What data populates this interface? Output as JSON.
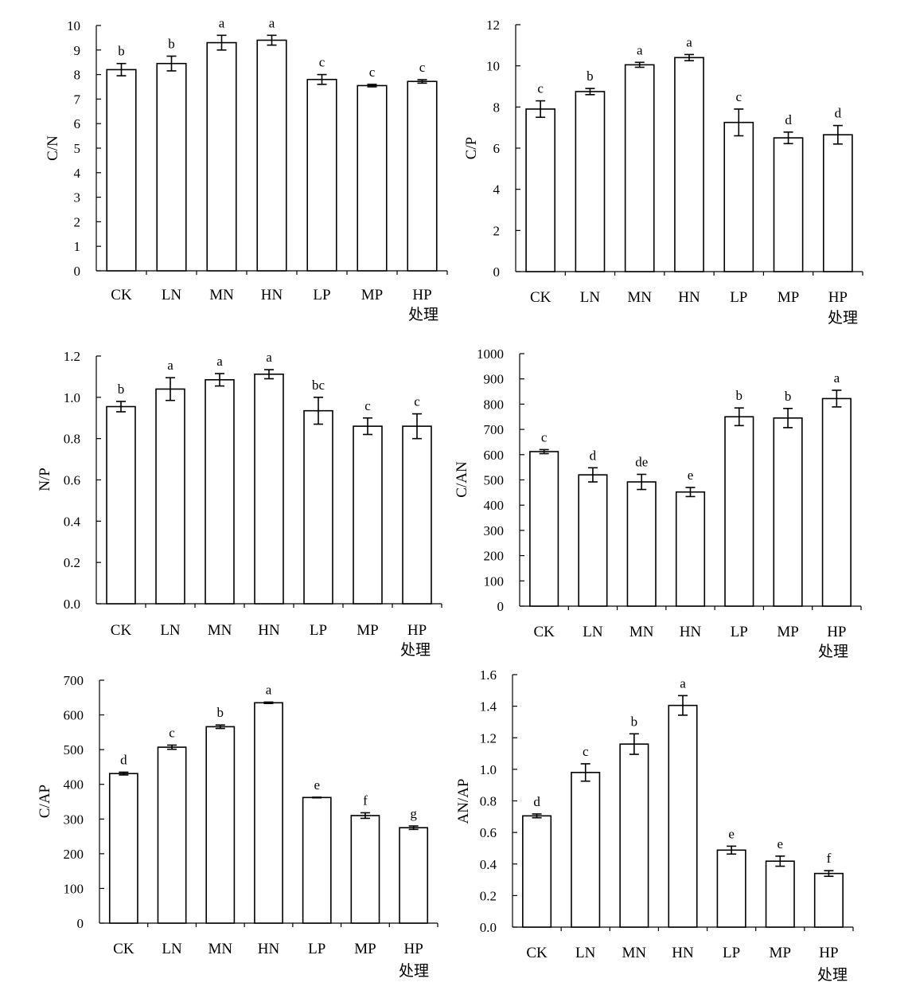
{
  "chart_data": [
    {
      "type": "bar",
      "categories": [
        "CK",
        "LN",
        "MN",
        "HN",
        "LP",
        "MP",
        "HP"
      ],
      "values": [
        8.2,
        8.45,
        9.3,
        9.4,
        7.8,
        7.55,
        7.72
      ],
      "errors": [
        0.25,
        0.3,
        0.3,
        0.2,
        0.2,
        0.05,
        0.07
      ],
      "significance": [
        "b",
        "b",
        "a",
        "a",
        "c",
        "c",
        "c"
      ],
      "xlabel": "处理",
      "ylabel": "C/N",
      "ylim": [
        0,
        10
      ],
      "yticks": [
        "0",
        "1",
        "2",
        "3",
        "4",
        "5",
        "6",
        "7",
        "8",
        "9",
        "10"
      ]
    },
    {
      "type": "bar",
      "categories": [
        "CK",
        "LN",
        "MN",
        "HN",
        "LP",
        "MP",
        "HP"
      ],
      "values": [
        7.9,
        8.75,
        10.05,
        10.4,
        7.25,
        6.5,
        6.65
      ],
      "errors": [
        0.4,
        0.15,
        0.12,
        0.15,
        0.65,
        0.28,
        0.45
      ],
      "significance": [
        "c",
        "b",
        "a",
        "a",
        "c",
        "d",
        "d"
      ],
      "xlabel": "处理",
      "ylabel": "C/P",
      "ylim": [
        0,
        12
      ],
      "yticks": [
        "0",
        "2",
        "4",
        "6",
        "8",
        "10",
        "12"
      ]
    },
    {
      "type": "bar",
      "categories": [
        "CK",
        "LN",
        "MN",
        "HN",
        "LP",
        "MP",
        "HP"
      ],
      "values": [
        0.955,
        1.04,
        1.085,
        1.112,
        0.935,
        0.86,
        0.86
      ],
      "errors": [
        0.025,
        0.055,
        0.03,
        0.022,
        0.065,
        0.04,
        0.06
      ],
      "significance": [
        "b",
        "a",
        "a",
        "a",
        "bc",
        "c",
        "c"
      ],
      "xlabel": "处理",
      "ylabel": "N/P",
      "ylim": [
        0,
        1.2
      ],
      "yticks": [
        "0.0",
        "0.2",
        "0.4",
        "0.6",
        "0.8",
        "1.0",
        "1.2"
      ]
    },
    {
      "type": "bar",
      "categories": [
        "CK",
        "LN",
        "MN",
        "HN",
        "LP",
        "MP",
        "HP"
      ],
      "values": [
        612,
        520,
        492,
        452,
        750,
        745,
        822
      ],
      "errors": [
        8,
        28,
        30,
        18,
        35,
        38,
        33
      ],
      "significance": [
        "c",
        "d",
        "de",
        "e",
        "b",
        "b",
        "a"
      ],
      "xlabel": "处理",
      "ylabel": "C/AN",
      "ylim": [
        0,
        1000
      ],
      "yticks": [
        "0",
        "100",
        "200",
        "300",
        "400",
        "500",
        "600",
        "700",
        "800",
        "900",
        "1000"
      ]
    },
    {
      "type": "bar",
      "categories": [
        "CK",
        "LN",
        "MN",
        "HN",
        "LP",
        "MP",
        "HP"
      ],
      "values": [
        431,
        507,
        566,
        635,
        362,
        310,
        275
      ],
      "errors": [
        4,
        6,
        5,
        2,
        1,
        8,
        5
      ],
      "significance": [
        "d",
        "c",
        "b",
        "a",
        "e",
        "f",
        "g"
      ],
      "xlabel": "处理",
      "ylabel": "C/AP",
      "ylim": [
        0,
        700
      ],
      "yticks": [
        "0",
        "100",
        "200",
        "300",
        "400",
        "500",
        "600",
        "700"
      ]
    },
    {
      "type": "bar",
      "categories": [
        "CK",
        "LN",
        "MN",
        "HN",
        "LP",
        "MP",
        "HP"
      ],
      "values": [
        0.705,
        0.98,
        1.16,
        1.405,
        0.488,
        0.418,
        0.34
      ],
      "errors": [
        0.012,
        0.055,
        0.065,
        0.062,
        0.025,
        0.032,
        0.018
      ],
      "significance": [
        "d",
        "c",
        "b",
        "a",
        "e",
        "e",
        "f"
      ],
      "xlabel": "处理",
      "ylabel": "AN/AP",
      "ylim": [
        0,
        1.6
      ],
      "yticks": [
        "0.0",
        "0.2",
        "0.4",
        "0.6",
        "0.8",
        "1.0",
        "1.2",
        "1.4",
        "1.6"
      ]
    }
  ]
}
